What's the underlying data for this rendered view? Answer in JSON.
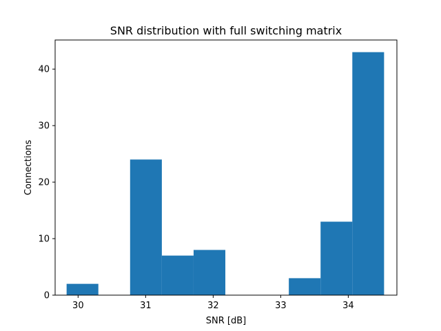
{
  "chart_data": {
    "type": "bar",
    "title": "SNR distribution with full switching matrix",
    "xlabel": "SNR [dB]",
    "ylabel": "Connections",
    "xlim": [
      29.66,
      34.72
    ],
    "ylim": [
      0,
      45.15
    ],
    "xticks": [
      30,
      31,
      32,
      33,
      34
    ],
    "yticks": [
      0,
      10,
      20,
      30,
      40
    ],
    "bins": [
      {
        "x0": 29.83,
        "x1": 30.3,
        "count": 2
      },
      {
        "x0": 30.3,
        "x1": 30.77,
        "count": 0
      },
      {
        "x0": 30.77,
        "x1": 31.24,
        "count": 24
      },
      {
        "x0": 31.24,
        "x1": 31.71,
        "count": 7
      },
      {
        "x0": 31.71,
        "x1": 32.18,
        "count": 8
      },
      {
        "x0": 32.18,
        "x1": 32.65,
        "count": 0
      },
      {
        "x0": 32.65,
        "x1": 33.12,
        "count": 0
      },
      {
        "x0": 33.12,
        "x1": 33.59,
        "count": 3
      },
      {
        "x0": 33.59,
        "x1": 34.06,
        "count": 13
      },
      {
        "x0": 34.06,
        "x1": 34.53,
        "count": 43
      }
    ],
    "bar_color": "#1f77b4",
    "grid": false
  }
}
